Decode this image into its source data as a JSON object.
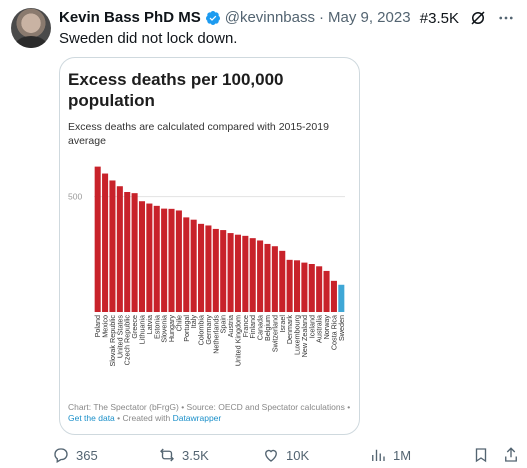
{
  "tweet": {
    "author_name": "Kevin Bass PhD MS",
    "handle": "@kevinnbass",
    "separator": "·",
    "date": "May 9, 2023",
    "trend_rank": "#3.5K",
    "text": "Sweden did not lock down."
  },
  "card": {
    "footer_prefix": "Chart: The Spectator (bFrgG) • Source: OECD and Spectator calculations • ",
    "footer_link1": "Get the data",
    "footer_mid": " • Created with ",
    "footer_link2": "Datawrapper"
  },
  "chart_data": {
    "type": "bar",
    "title": "Excess deaths per 100,000 population",
    "subtitle": "Excess deaths are calculated compared with 2015-2019 average",
    "ylabel": "",
    "xlabel": "",
    "ylim": [
      0,
      650
    ],
    "yticks": [
      500
    ],
    "grid": true,
    "categories": [
      "Poland",
      "Mexico",
      "Slovak Republic",
      "United States",
      "Czech Republic",
      "Greece",
      "Lithuania",
      "Latvia",
      "Estonia",
      "Slovenia",
      "Hungary",
      "Chile",
      "Portugal",
      "Italy",
      "Colombia",
      "Germany",
      "Netherlands",
      "Spain",
      "Austria",
      "United Kingdom",
      "France",
      "Finland",
      "Canada",
      "Belgium",
      "Switzerland",
      "Israel",
      "Denmark",
      "Luxembourg",
      "New Zealand",
      "Iceland",
      "Australia",
      "Norway",
      "Costa Rica",
      "Sweden"
    ],
    "values": [
      630,
      600,
      570,
      545,
      520,
      515,
      480,
      470,
      460,
      448,
      447,
      440,
      410,
      400,
      382,
      375,
      360,
      355,
      342,
      335,
      330,
      320,
      310,
      295,
      285,
      265,
      226,
      224,
      214,
      208,
      198,
      178,
      135,
      118
    ],
    "colors": {
      "default": "#c8222a",
      "highlight": "#3fa7d6"
    },
    "highlight_category": "Sweden"
  },
  "actions": {
    "replies": "365",
    "reposts": "3.5K",
    "likes": "10K",
    "views": "1M"
  }
}
